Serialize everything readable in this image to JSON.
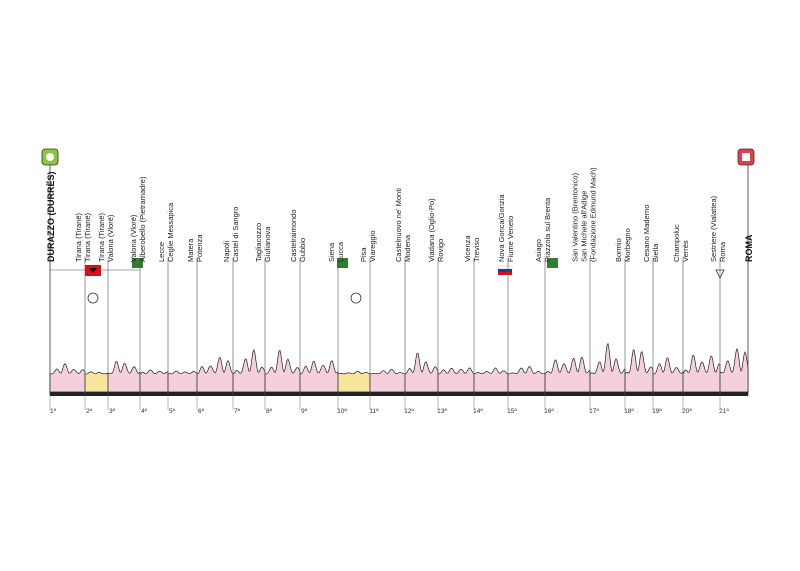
{
  "start": "DURAZZO (DURRËS)",
  "finish": "ROMA",
  "groups": [
    [
      "Tirana (Tiranë)",
      "Tirana (Tiranë)"
    ],
    [
      "Tirana (Tiranë)",
      "Valona (Vlorë)"
    ],
    [
      "Valona (Vlorë)",
      "Alberobello (Pietramadre)"
    ],
    [
      "Lecce",
      "Ceglie Messapica"
    ],
    [
      "Matera",
      "Potenza"
    ],
    [
      "Napoli",
      "Castel di Sangro"
    ],
    [
      "Tagliacozzo",
      "Giulianova"
    ],
    [
      "Castelraimondo",
      "Gubbio"
    ],
    [
      "Siena",
      "Lucca"
    ],
    [
      "Pisa",
      "Viareggio"
    ],
    [
      "Castelnuovo ne' Monti",
      "Modena"
    ],
    [
      "Viadana (Oglio-Po)",
      "Rovigo"
    ],
    [
      "Vicenza",
      "Treviso"
    ],
    [
      "Nova Gorica/Gorizia",
      "Fiume Veneto"
    ],
    [
      "Asiago",
      "Piazzola sul Brenta"
    ],
    [
      "San Valentino (Brentonico)",
      "San Michele all'Adige",
      "(Fondazione Edmund Mach)"
    ],
    [
      "Bormio",
      "Morbegno"
    ],
    [
      "Cesano Maderno",
      "Biella"
    ],
    [
      "Champoluc",
      "Verrès"
    ],
    [
      "Sestriere (Vialattea)",
      "Roma"
    ]
  ],
  "stages": [
    "1ª",
    "2ª",
    "3ª",
    "4ª",
    "5ª",
    "6ª",
    "7ª",
    "8ª",
    "9ª",
    "10ª",
    "11ª",
    "12ª",
    "13ª",
    "14ª",
    "15ª",
    "16ª",
    "17ª",
    "18ª",
    "19ª",
    "20ª",
    "21ª"
  ]
}
